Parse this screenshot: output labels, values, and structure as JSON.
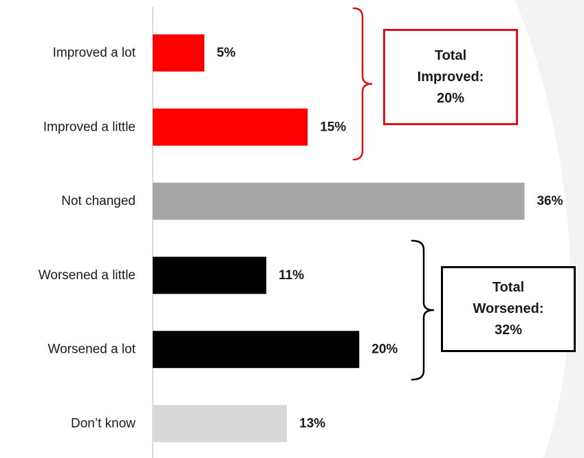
{
  "chart_data": {
    "type": "bar",
    "orientation": "horizontal",
    "categories": [
      "Improved a lot",
      "Improved a little",
      "Not changed",
      "Worsened a little",
      "Worsened a lot",
      "Don’t know"
    ],
    "values": [
      5,
      15,
      36,
      11,
      20,
      13
    ],
    "value_labels": [
      "5%",
      "15%",
      "36%",
      "11%",
      "20%",
      "13%"
    ],
    "bar_colors": [
      "#ff0000",
      "#ff0000",
      "#a6a6a6",
      "#000000",
      "#000000",
      "#d9d9d9"
    ],
    "xlim": [
      0,
      37.5
    ],
    "title": "",
    "xlabel": "",
    "ylabel": "",
    "grid": false,
    "legend": "none",
    "annotations": [
      {
        "text": "Total Improved: 20%",
        "lines": [
          "Total",
          "Improved:",
          "20%"
        ],
        "spans": [
          0,
          1
        ],
        "color": "#e0101a"
      },
      {
        "text": "Total Worsened: 32%",
        "lines": [
          "Total",
          "Worsened:",
          "32%"
        ],
        "spans": [
          3,
          4
        ],
        "color": "#000000"
      }
    ]
  },
  "colors": {
    "axis_line": "#d0d0d0",
    "text": "#1a1a1a",
    "background_shape": "#f3f3f3"
  }
}
